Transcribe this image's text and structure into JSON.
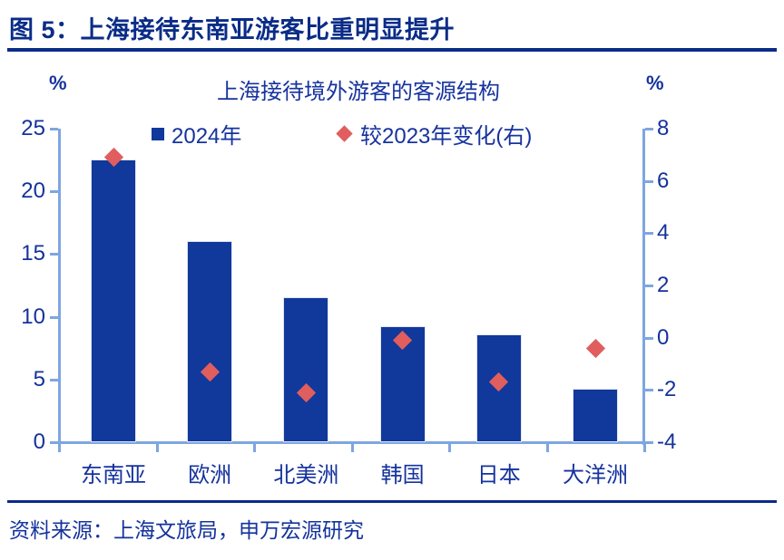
{
  "figure": {
    "label": "图 5：上海接待东南亚游客比重明显提升",
    "source": "资料来源：上海文旅局，申万宏源研究"
  },
  "chart_data": {
    "type": "bar",
    "title": "上海接待境外游客的客源结构",
    "categories": [
      "东南亚",
      "欧洲",
      "北美洲",
      "韩国",
      "日本",
      "大洋洲"
    ],
    "series": [
      {
        "name": "2024年",
        "type": "bar",
        "axis": "left",
        "marker": "square",
        "color": "#11389b",
        "values": [
          22.5,
          16.0,
          11.5,
          9.2,
          8.5,
          4.2
        ]
      },
      {
        "name": "较2023年变化(右)",
        "type": "scatter",
        "axis": "right",
        "marker": "diamond",
        "color": "#e05e5e",
        "values": [
          6.9,
          -1.3,
          -2.1,
          -0.1,
          -1.7,
          -0.4
        ]
      }
    ],
    "left_axis": {
      "unit": "%",
      "min": 0,
      "max": 25,
      "ticks": [
        0,
        5,
        10,
        15,
        20,
        25
      ]
    },
    "right_axis": {
      "unit": "%",
      "min": -4,
      "max": 8,
      "ticks": [
        -4,
        -2,
        0,
        2,
        4,
        6,
        8
      ]
    },
    "legend_position": "top",
    "grid": false,
    "axis_color": "#7ea6e0",
    "text_color": "#16339e"
  }
}
